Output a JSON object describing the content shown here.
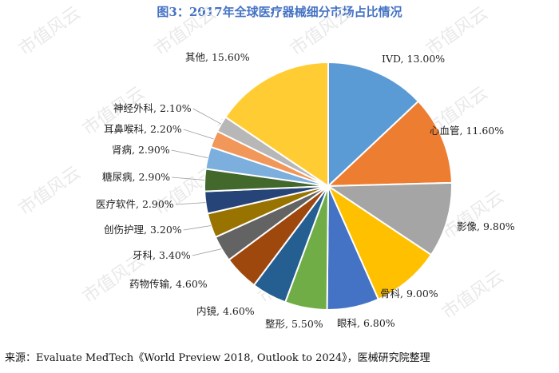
{
  "title": "图3：2017年全球医疗器械细分市场占比情况",
  "source": "来源：Evaluate MedTech《World Preview 2018, Outlook to 2024》，医械研究院整理",
  "watermark": "市值风云",
  "chart_data": {
    "type": "pie",
    "categories": [
      "IVD",
      "心血管",
      "影像",
      "骨科",
      "眼科",
      "整形",
      "内镜",
      "药物传输",
      "牙科",
      "创伤护理",
      "医疗软件",
      "糖尿病",
      "肾病",
      "耳鼻喉科",
      "神经外科",
      "其他"
    ],
    "values": [
      13.0,
      11.6,
      9.8,
      9.0,
      6.8,
      5.5,
      4.6,
      4.6,
      3.4,
      3.2,
      2.9,
      2.9,
      2.9,
      2.2,
      2.1,
      15.6
    ],
    "labels": [
      "IVD, 13.00%",
      "心血管, 11.60%",
      "影像, 9.80%",
      "骨科, 9.00%",
      "眼科, 6.80%",
      "整形, 5.50%",
      "内镜, 4.60%",
      "药物传输, 4.60%",
      "牙科, 3.40%",
      "创伤护理, 3.20%",
      "医疗软件, 2.90%",
      "糖尿病, 2.90%",
      "肾病, 2.90%",
      "耳鼻喉科, 2.20%",
      "神经外科, 2.10%",
      "其他, 15.60%"
    ],
    "colors": [
      "#5b9bd5",
      "#ed7d31",
      "#a5a5a5",
      "#ffc000",
      "#4472c4",
      "#70ad47",
      "#255e91",
      "#9e480e",
      "#636363",
      "#997300",
      "#264478",
      "#43682b",
      "#7cafdd",
      "#f1975a",
      "#b7b7b7",
      "#ffcd33"
    ],
    "legend": "none"
  }
}
